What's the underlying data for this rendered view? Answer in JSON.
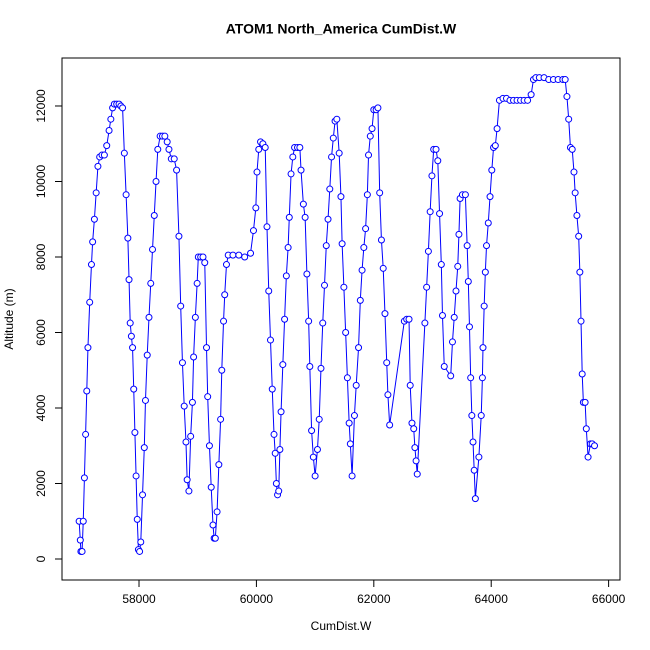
{
  "chart_data": {
    "type": "line",
    "markers": "circle-open",
    "title": "ATOM1 North_America CumDist.W",
    "xlabel": "CumDist.W",
    "ylabel": "Altitude (m)",
    "color": "blue",
    "xlim": [
      56688,
      66194
    ],
    "ylim": [
      -556,
      13271
    ],
    "xticks": [
      58000,
      60000,
      62000,
      64000,
      66000
    ],
    "yticks": [
      0,
      2000,
      4000,
      6000,
      8000,
      10000,
      12000
    ],
    "x": [
      56980,
      57000,
      57010,
      57030,
      57050,
      57070,
      57090,
      57110,
      57130,
      57160,
      57190,
      57210,
      57240,
      57270,
      57300,
      57330,
      57370,
      57410,
      57450,
      57490,
      57520,
      57550,
      57580,
      57620,
      57660,
      57690,
      57720,
      57750,
      57780,
      57810,
      57830,
      57850,
      57870,
      57890,
      57910,
      57930,
      57950,
      57970,
      57990,
      58010,
      58030,
      58060,
      58090,
      58110,
      58140,
      58170,
      58200,
      58230,
      58260,
      58290,
      58320,
      58360,
      58400,
      58440,
      58480,
      58510,
      58550,
      58600,
      58640,
      58680,
      58710,
      58740,
      58770,
      58800,
      58820,
      58850,
      58880,
      58910,
      58930,
      58960,
      58990,
      59010,
      59050,
      59090,
      59120,
      59150,
      59170,
      59200,
      59230,
      59260,
      59280,
      59300,
      59330,
      59360,
      59390,
      59410,
      59440,
      59460,
      59490,
      59520,
      59600,
      59700,
      59800,
      59900,
      59950,
      59990,
      60010,
      60040,
      60070,
      60110,
      60150,
      60180,
      60210,
      60240,
      60270,
      60300,
      60320,
      60340,
      60360,
      60380,
      60400,
      60420,
      60450,
      60480,
      60510,
      60540,
      60560,
      60590,
      60620,
      60650,
      60700,
      60740,
      60760,
      60800,
      60830,
      60860,
      60890,
      60910,
      60940,
      60970,
      61000,
      61040,
      61070,
      61100,
      61130,
      61160,
      61190,
      61220,
      61250,
      61280,
      61310,
      61340,
      61370,
      61410,
      61440,
      61460,
      61490,
      61520,
      61550,
      61580,
      61600,
      61630,
      61670,
      61700,
      61740,
      61770,
      61800,
      61830,
      61860,
      61890,
      61910,
      61940,
      61970,
      62000,
      62040,
      62070,
      62100,
      62130,
      62160,
      62190,
      62220,
      62240,
      62270,
      62520,
      62560,
      62600,
      62620,
      62650,
      62680,
      62700,
      62720,
      62740,
      62870,
      62900,
      62930,
      62960,
      62990,
      63020,
      63060,
      63090,
      63120,
      63150,
      63170,
      63200,
      63310,
      63340,
      63370,
      63400,
      63430,
      63450,
      63470,
      63510,
      63560,
      63590,
      63610,
      63630,
      63650,
      63670,
      63690,
      63710,
      63730,
      63790,
      63830,
      63850,
      63860,
      63880,
      63900,
      63920,
      63950,
      63980,
      64010,
      64040,
      64070,
      64100,
      64140,
      64200,
      64260,
      64320,
      64380,
      64440,
      64500,
      64560,
      64620,
      64680,
      64720,
      64760,
      64820,
      64900,
      64980,
      65060,
      65140,
      65220,
      65260,
      65290,
      65320,
      65350,
      65380,
      65410,
      65430,
      65460,
      65490,
      65510,
      65530,
      65550,
      65570,
      65600,
      65620,
      65650,
      65690,
      65720,
      65760
    ],
    "values": [
      1000,
      500,
      200,
      200,
      1000,
      2150,
      3300,
      4450,
      5600,
      6800,
      7800,
      8400,
      9000,
      9700,
      10400,
      10650,
      10700,
      10700,
      10950,
      11350,
      11650,
      11950,
      12050,
      12050,
      12050,
      12000,
      11950,
      10750,
      9650,
      8500,
      7400,
      6250,
      5900,
      5600,
      4500,
      3350,
      2200,
      1050,
      250,
      200,
      450,
      1700,
      2950,
      4200,
      5400,
      6400,
      7300,
      8200,
      9100,
      10000,
      10850,
      11200,
      11200,
      11200,
      11050,
      10850,
      10600,
      10600,
      10300,
      8550,
      6700,
      5200,
      4050,
      3100,
      2100,
      1800,
      3250,
      4150,
      5350,
      6400,
      7300,
      8000,
      8000,
      8000,
      7850,
      5600,
      4300,
      3000,
      1900,
      900,
      550,
      550,
      1250,
      2500,
      3700,
      5000,
      6300,
      7000,
      7800,
      8050,
      8050,
      8050,
      8000,
      8100,
      8700,
      9300,
      10250,
      10850,
      11050,
      11000,
      10900,
      8800,
      7100,
      5800,
      4500,
      3300,
      2800,
      2000,
      1700,
      1800,
      2900,
      3900,
      5150,
      6350,
      7500,
      8250,
      9050,
      10200,
      10650,
      10900,
      10900,
      10900,
      10300,
      9400,
      9050,
      7550,
      6300,
      5100,
      3400,
      2700,
      2200,
      2900,
      3700,
      5050,
      6250,
      7250,
      8300,
      9000,
      9800,
      10650,
      11150,
      11600,
      11650,
      10750,
      9600,
      8350,
      7200,
      6000,
      4800,
      3600,
      3050,
      2200,
      3800,
      4600,
      5600,
      6850,
      7650,
      8250,
      8750,
      9650,
      10700,
      11200,
      11400,
      11900,
      11900,
      11950,
      9700,
      8450,
      7700,
      6500,
      5200,
      4350,
      3550,
      6300,
      6350,
      6350,
      4600,
      3600,
      3450,
      2950,
      2600,
      2250,
      6250,
      7200,
      8150,
      9200,
      10150,
      10850,
      10850,
      10550,
      9150,
      7800,
      6450,
      5100,
      4850,
      5750,
      6400,
      7100,
      7750,
      8600,
      9550,
      9650,
      9650,
      8300,
      7350,
      6150,
      4800,
      3800,
      3100,
      2350,
      1600,
      2700,
      3800,
      4800,
      5600,
      6700,
      7600,
      8300,
      8900,
      9600,
      10300,
      10900,
      10950,
      11400,
      12150,
      12200,
      12200,
      12150,
      12150,
      12150,
      12150,
      12150,
      12150,
      12300,
      12700,
      12750,
      12750,
      12750,
      12700,
      12700,
      12700,
      12700,
      12700,
      12250,
      11650,
      10900,
      10850,
      10250,
      9700,
      9100,
      8550,
      7600,
      6300,
      4900,
      4150,
      4150,
      3450,
      2700,
      3050,
      3050,
      3000
    ]
  }
}
